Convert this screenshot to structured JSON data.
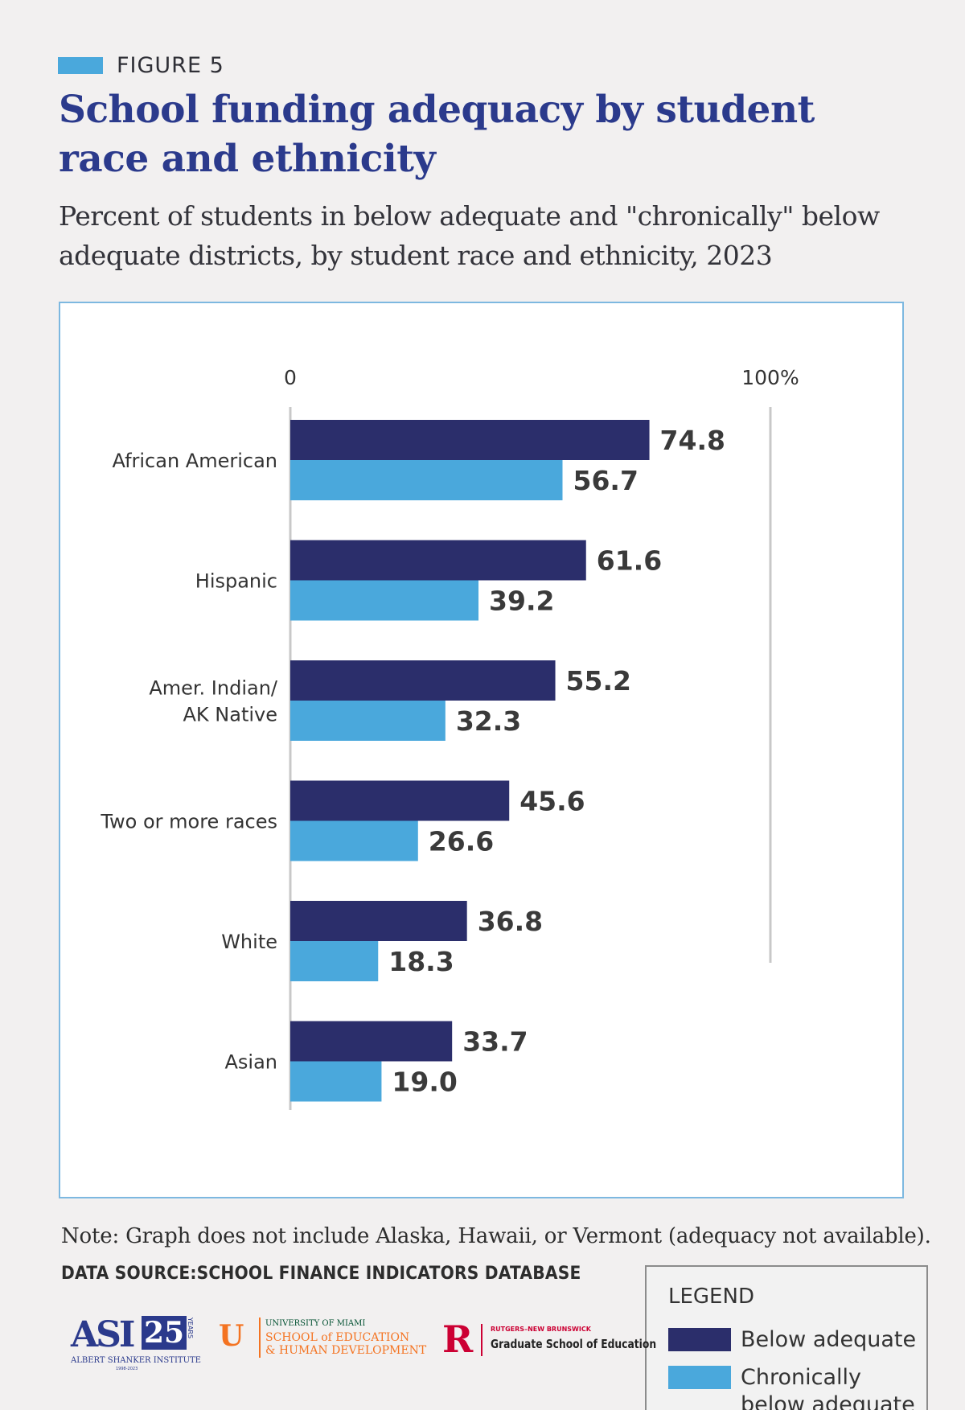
{
  "figure_label": "FIGURE 5",
  "title": "School funding adequacy by student race and ethnicity",
  "subtitle": "Percent of students in below adequate and \"chronically\" below adequate districts, by student race and ethnicity, 2023",
  "colors": {
    "accent_swatch": "#4aa8dc",
    "title": "#2b3a8c",
    "below_adequate": "#2b2e6b",
    "chronically_below_adequate": "#4aa8dc"
  },
  "chart_data": {
    "type": "bar",
    "orientation": "horizontal",
    "xlim": [
      0,
      100
    ],
    "x_tick_labels": [
      "0",
      "100%"
    ],
    "categories": [
      [
        "African American"
      ],
      [
        "Hispanic"
      ],
      [
        "Amer. Indian/",
        "AK Native"
      ],
      [
        "Two or more races"
      ],
      [
        "White"
      ],
      [
        "Asian"
      ]
    ],
    "series": [
      {
        "name": "Below adequate",
        "values": [
          74.8,
          61.6,
          55.2,
          45.6,
          36.8,
          33.7
        ]
      },
      {
        "name": "Chronically below adequate",
        "values": [
          56.7,
          39.2,
          32.3,
          26.6,
          18.3,
          19.0
        ]
      }
    ],
    "value_labels": [
      [
        "74.8",
        "61.6",
        "55.2",
        "45.6",
        "36.8",
        "33.7"
      ],
      [
        "56.7",
        "39.2",
        "32.3",
        "26.6",
        "18.3",
        "19.0"
      ]
    ],
    "grid": "vertical lines at 0 and 100%",
    "legend": {
      "title": "LEGEND",
      "placement": "bottom-right",
      "items": [
        {
          "label_lines": [
            "Below adequate"
          ]
        },
        {
          "label_lines": [
            "Chronically",
            "below adequate"
          ]
        }
      ]
    }
  },
  "note": "Note: Graph does not include Alaska, Hawaii, or Vermont (adequacy not available).",
  "data_source": "DATA SOURCE:SCHOOL FINANCE INDICATORS DATABASE",
  "logos": {
    "asi": {
      "letters": "ASI",
      "years_number": "25",
      "years_word": "YEARS",
      "name": "ALBERT SHANKER INSTITUTE",
      "dates": "1998-2023"
    },
    "um": {
      "line1": "UNIVERSITY OF MIAMI",
      "line2": "SCHOOL of EDUCATION",
      "line3": "& HUMAN DEVELOPMENT"
    },
    "rutgers": {
      "line1": "RUTGERS–NEW BRUNSWICK",
      "line2": "Graduate School of Education"
    }
  }
}
